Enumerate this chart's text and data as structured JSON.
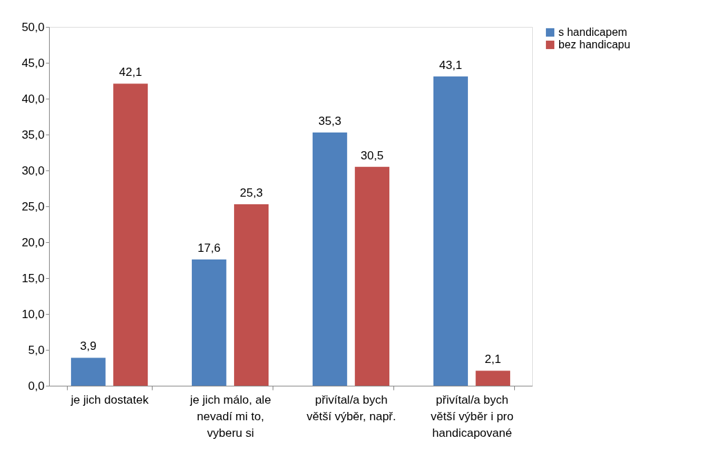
{
  "chart_data": {
    "type": "bar",
    "categories": [
      "je jich dostatek",
      "je jich málo, ale nevadí mi to, vyberu si",
      "přivítal/a bych větší výběr, např.",
      "přivítal/a bych větší výběr i pro handicapované"
    ],
    "series": [
      {
        "name": "s handicapem",
        "color": "#4f81bd",
        "values": [
          3.9,
          17.6,
          35.3,
          43.1
        ],
        "value_labels": [
          "3,9",
          "17,6",
          "35,3",
          "43,1"
        ]
      },
      {
        "name": "bez handicapu",
        "color": "#c0504d",
        "values": [
          42.1,
          25.3,
          30.5,
          2.1
        ],
        "value_labels": [
          "42,1",
          "25,3",
          "30,5",
          "2,1"
        ]
      }
    ],
    "ylim": [
      0,
      50
    ],
    "yticks": [
      {
        "value": 0,
        "label": "0,0"
      },
      {
        "value": 5,
        "label": "5,0"
      },
      {
        "value": 10,
        "label": "10,0"
      },
      {
        "value": 15,
        "label": "15,0"
      },
      {
        "value": 20,
        "label": "20,0"
      },
      {
        "value": 25,
        "label": "25,0"
      },
      {
        "value": 30,
        "label": "30,0"
      },
      {
        "value": 35,
        "label": "35,0"
      },
      {
        "value": 40,
        "label": "40,0"
      },
      {
        "value": 45,
        "label": "45,0"
      },
      {
        "value": 50,
        "label": "50,0"
      }
    ],
    "grid": false,
    "legend": "right"
  }
}
